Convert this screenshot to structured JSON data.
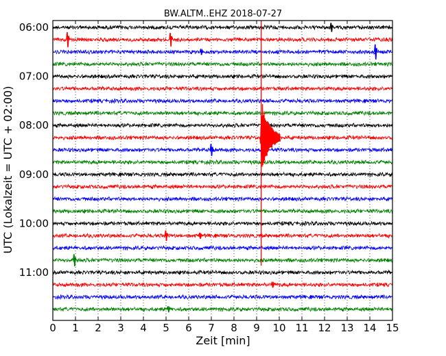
{
  "chart_data": {
    "type": "line",
    "title": "BW.ALTM..EHZ 2018-07-27",
    "xlabel": "Zeit  [min]",
    "ylabel": "UTC (Lokalzeit = UTC + 02:00)",
    "xlim": [
      0,
      15
    ],
    "x_ticks": [
      0,
      1,
      2,
      3,
      4,
      5,
      6,
      7,
      8,
      9,
      10,
      11,
      12,
      13,
      14,
      15
    ],
    "y_tick_labels": [
      "06:00",
      "07:00",
      "08:00",
      "09:00",
      "10:00",
      "11:00"
    ],
    "grid": "vertical dotted",
    "trace_colors": [
      "#000000",
      "#ff0000",
      "#0000ff",
      "#008000"
    ],
    "trace_interval_minutes": 15,
    "traces": [
      {
        "start": "06:00",
        "color": "#000000"
      },
      {
        "start": "06:15",
        "color": "#ff0000"
      },
      {
        "start": "06:30",
        "color": "#0000ff"
      },
      {
        "start": "06:45",
        "color": "#008000"
      },
      {
        "start": "07:00",
        "color": "#000000"
      },
      {
        "start": "07:15",
        "color": "#ff0000"
      },
      {
        "start": "07:30",
        "color": "#0000ff"
      },
      {
        "start": "07:45",
        "color": "#008000"
      },
      {
        "start": "08:00",
        "color": "#000000"
      },
      {
        "start": "08:15",
        "color": "#ff0000"
      },
      {
        "start": "08:30",
        "color": "#0000ff"
      },
      {
        "start": "08:45",
        "color": "#008000"
      },
      {
        "start": "09:00",
        "color": "#000000"
      },
      {
        "start": "09:15",
        "color": "#ff0000"
      },
      {
        "start": "09:30",
        "color": "#0000ff"
      },
      {
        "start": "09:45",
        "color": "#008000"
      },
      {
        "start": "10:00",
        "color": "#000000"
      },
      {
        "start": "10:15",
        "color": "#ff0000"
      },
      {
        "start": "10:30",
        "color": "#0000ff"
      },
      {
        "start": "10:45",
        "color": "#008000"
      },
      {
        "start": "11:00",
        "color": "#000000"
      },
      {
        "start": "11:15",
        "color": "#ff0000"
      },
      {
        "start": "11:30",
        "color": "#0000ff"
      },
      {
        "start": "11:45",
        "color": "#008000"
      }
    ],
    "event_marker": {
      "x_min": 9.2,
      "from": "06:00",
      "to": "10:45",
      "color": "#ff0000"
    },
    "spikes": [
      {
        "trace": 1,
        "x": 0.65,
        "amp": 1.0
      },
      {
        "trace": 1,
        "x": 5.2,
        "amp": 0.9
      },
      {
        "trace": 2,
        "x": 6.55,
        "amp": 0.4
      },
      {
        "trace": 2,
        "x": 14.25,
        "amp": 1.0
      },
      {
        "trace": 0,
        "x": 12.3,
        "amp": 0.6
      },
      {
        "trace": 10,
        "x": 7.0,
        "amp": 0.8
      },
      {
        "trace": 17,
        "x": 5.0,
        "amp": 0.7
      },
      {
        "trace": 17,
        "x": 6.5,
        "amp": 0.4
      },
      {
        "trace": 19,
        "x": 0.95,
        "amp": 0.8
      },
      {
        "trace": 21,
        "x": 9.7,
        "amp": 0.4
      },
      {
        "trace": 23,
        "x": 5.1,
        "amp": 0.4
      }
    ],
    "earthquake": {
      "trace": 9,
      "x_start": 9.15,
      "x_peak": 9.25,
      "duration_min": 0.9,
      "amp_up": 2.9,
      "amp_down": 2.8
    }
  }
}
